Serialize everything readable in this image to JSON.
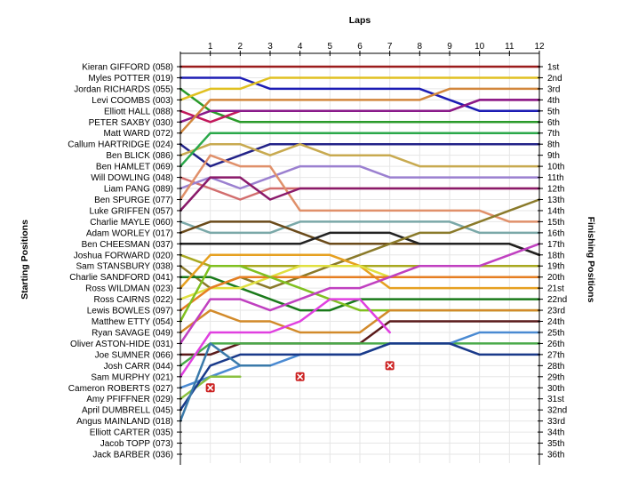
{
  "chart_data": {
    "type": "line",
    "title": "",
    "xlabel": "Laps",
    "ylabel_left": "Starting Positions",
    "ylabel_right": "Finishing Positions",
    "x": [
      0,
      1,
      2,
      3,
      4,
      5,
      6,
      7,
      8,
      9,
      10,
      11,
      12
    ],
    "x_tick_labels": [
      "1",
      "2",
      "3",
      "4",
      "5",
      "6",
      "7",
      "8",
      "9",
      "10",
      "11",
      "12"
    ],
    "ylim": [
      1,
      36
    ],
    "grid": true,
    "legend": "none",
    "finishing_labels": [
      "1st",
      "2nd",
      "3rd",
      "4th",
      "5th",
      "6th",
      "7th",
      "8th",
      "9th",
      "10th",
      "11th",
      "12th",
      "13th",
      "14th",
      "15th",
      "16th",
      "17th",
      "18th",
      "19th",
      "20th",
      "21st",
      "22nd",
      "23rd",
      "24th",
      "25th",
      "26th",
      "27th",
      "28th",
      "29th",
      "30th",
      "31st",
      "32nd",
      "33rd",
      "34th",
      "35th",
      "36th"
    ],
    "series": [
      {
        "label": "Kieran GIFFORD (058)",
        "color": "#9b1c1c",
        "positions": [
          1,
          1,
          1,
          1,
          1,
          1,
          1,
          1,
          1,
          1,
          1,
          1,
          1
        ]
      },
      {
        "label": "Myles POTTER (019)",
        "color": "#1c1cb4",
        "positions": [
          2,
          2,
          2,
          3,
          3,
          3,
          3,
          3,
          3,
          4,
          5,
          5,
          5
        ]
      },
      {
        "label": "Jordan RICHARDS (055)",
        "color": "#2a9a2a",
        "positions": [
          3,
          5,
          6,
          6,
          6,
          6,
          6,
          6,
          6,
          6,
          6,
          6,
          6
        ]
      },
      {
        "label": "Levi COOMBS (003)",
        "color": "#e0c020",
        "positions": [
          4,
          3,
          3,
          2,
          2,
          2,
          2,
          2,
          2,
          2,
          2,
          2,
          2
        ]
      },
      {
        "label": "Elliott HALL (088)",
        "color": "#c2185b",
        "positions": [
          5,
          6,
          5,
          5,
          5,
          5,
          5,
          5,
          5,
          5,
          4,
          4,
          4
        ]
      },
      {
        "label": "PETER SAXBY (030)",
        "color": "#8a1a8a",
        "positions": [
          6,
          5,
          5,
          5,
          5,
          5,
          5,
          5,
          5,
          5,
          4,
          4,
          4
        ]
      },
      {
        "label": "Matt WARD (072)",
        "color": "#d2863c",
        "positions": [
          7,
          4,
          4,
          4,
          4,
          4,
          4,
          4,
          4,
          3,
          3,
          3,
          3
        ]
      },
      {
        "label": "Callum HARTRIDGE (024)",
        "color": "#222288",
        "positions": [
          8,
          10,
          9,
          8,
          8,
          8,
          8,
          8,
          8,
          8,
          8,
          8,
          8
        ]
      },
      {
        "label": "Ben BLICK (086)",
        "color": "#c8aa50",
        "positions": [
          9,
          8,
          8,
          9,
          8,
          9,
          9,
          9,
          10,
          10,
          10,
          10,
          10
        ]
      },
      {
        "label": "Ben HAMLET (069)",
        "color": "#2aa84a",
        "positions": [
          10,
          7,
          7,
          7,
          7,
          7,
          7,
          7,
          7,
          7,
          7,
          7,
          7
        ]
      },
      {
        "label": "Will DOWLING (048)",
        "color": "#d26e6e",
        "positions": [
          11,
          12,
          13,
          12,
          12,
          12,
          12,
          12,
          12,
          12,
          12,
          12,
          12
        ]
      },
      {
        "label": "Liam PANG (089)",
        "color": "#9b80d0",
        "positions": [
          12,
          11,
          12,
          11,
          10,
          10,
          10,
          11,
          11,
          11,
          11,
          11,
          11
        ]
      },
      {
        "label": "Ben SPURGE (077)",
        "color": "#e0906a",
        "positions": [
          13,
          9,
          10,
          10,
          14,
          14,
          14,
          14,
          14,
          14,
          14,
          15,
          15
        ]
      },
      {
        "label": "Luke GRIFFEN (057)",
        "color": "#8a1a6a",
        "positions": [
          14,
          11,
          11,
          13,
          12,
          12,
          12,
          12,
          12,
          12,
          12,
          12,
          12
        ]
      },
      {
        "label": "Charlie MAYLE (060)",
        "color": "#7aa8a8",
        "positions": [
          15,
          16,
          16,
          16,
          15,
          15,
          15,
          15,
          15,
          15,
          16,
          16,
          16
        ]
      },
      {
        "label": "Adam WORLEY (017)",
        "color": "#6a4a1a",
        "positions": [
          16,
          15,
          15,
          15,
          16,
          17,
          17,
          17,
          17,
          17,
          17,
          17,
          18
        ]
      },
      {
        "label": "Ben CHEESMAN (037)",
        "color": "#222222",
        "positions": [
          17,
          17,
          17,
          17,
          17,
          16,
          16,
          16,
          17,
          17,
          17,
          17,
          18
        ]
      },
      {
        "label": "Joshua FORWARD (020)",
        "color": "#a8a820",
        "positions": [
          18,
          19,
          19,
          19,
          19,
          19,
          19,
          19,
          19,
          19,
          19,
          19,
          19
        ]
      },
      {
        "label": "Sam STANSBURY (038)",
        "color": "#8a7a2a",
        "positions": [
          19,
          21,
          20,
          21,
          20,
          19,
          18,
          17,
          16,
          16,
          15,
          14,
          13
        ]
      },
      {
        "label": "Charlie SANDFORD (041)",
        "color": "#1a7a1a",
        "positions": [
          20,
          20,
          21,
          22,
          23,
          23,
          22,
          22,
          22,
          22,
          22,
          22,
          22
        ]
      },
      {
        "label": "Ross WILDMAN (023)",
        "color": "#e6a020",
        "positions": [
          21,
          18,
          18,
          18,
          18,
          18,
          19,
          21,
          21,
          21,
          21,
          21,
          21
        ]
      },
      {
        "label": "Ross CAIRNS (022)",
        "color": "#e0e040",
        "positions": [
          22,
          21,
          21,
          20,
          19,
          19,
          19,
          20,
          20,
          20,
          20,
          20,
          20
        ]
      },
      {
        "label": "Lewis BOWLES (097)",
        "color": "#e67e22",
        "positions": [
          23,
          21,
          20,
          20,
          20,
          20,
          20,
          20,
          20,
          20,
          20,
          20,
          20
        ]
      },
      {
        "label": "Matthew ETTY (054)",
        "color": "#80c020",
        "positions": [
          24,
          19,
          19,
          20,
          21,
          22,
          23,
          23,
          23,
          23,
          23,
          23,
          23
        ]
      },
      {
        "label": "Ryan SAVAGE (049)",
        "color": "#d28a2a",
        "positions": [
          25,
          23,
          24,
          24,
          25,
          25,
          25,
          23,
          23,
          23,
          23,
          23,
          23
        ]
      },
      {
        "label": "Oliver ASTON-HIDE (031)",
        "color": "#c040c0",
        "positions": [
          26,
          22,
          22,
          23,
          22,
          21,
          21,
          20,
          19,
          19,
          19,
          18,
          17
        ]
      },
      {
        "label": "Joe SUMNER (066)",
        "color": "#5a1a1a",
        "positions": [
          27,
          27,
          26,
          26,
          26,
          26,
          26,
          24,
          24,
          24,
          24,
          24,
          24
        ]
      },
      {
        "label": "Josh CARR (044)",
        "color": "#4aaa4a",
        "positions": [
          28,
          26,
          26,
          26,
          26,
          26,
          26,
          26,
          26,
          26,
          26,
          26,
          26
        ]
      },
      {
        "label": "Sam MURPHY (021)",
        "color": "#e040e0",
        "positions": [
          29,
          25,
          25,
          25,
          24,
          22,
          22,
          25,
          null,
          null,
          null,
          null,
          null
        ]
      },
      {
        "label": "Cameron ROBERTS (027)",
        "color": "#4a8ad2",
        "positions": [
          30,
          29,
          28,
          28,
          27,
          27,
          27,
          26,
          26,
          26,
          25,
          25,
          25
        ]
      },
      {
        "label": "Amy PFIFFNER (029)",
        "color": "#8ac040",
        "positions": [
          31,
          29,
          29,
          null,
          null,
          null,
          null,
          null,
          null,
          null,
          null,
          null,
          null
        ]
      },
      {
        "label": "April DUMBRELL (045)",
        "color": "#1a3a8a",
        "positions": [
          32,
          28,
          27,
          27,
          27,
          27,
          27,
          26,
          26,
          26,
          27,
          27,
          27
        ]
      },
      {
        "label": "Angus MAINLAND (018)",
        "color": "#3a7aaa",
        "positions": [
          33,
          26,
          28,
          28,
          null,
          null,
          null,
          null,
          null,
          null,
          null,
          null,
          null
        ]
      },
      {
        "label": "Elliott CARTER (035)",
        "color": "#2a6a8a",
        "positions": [
          34,
          null,
          null,
          null,
          null,
          null,
          null,
          null,
          null,
          null,
          null,
          null,
          null
        ]
      },
      {
        "label": "Jacob TOPP (073)",
        "color": "#555555",
        "positions": [
          35,
          null,
          null,
          null,
          null,
          null,
          null,
          null,
          null,
          null,
          null,
          null,
          null
        ]
      },
      {
        "label": "Jack BARBER (036)",
        "color": "#777777",
        "positions": [
          36,
          null,
          null,
          null,
          null,
          null,
          null,
          null,
          null,
          null,
          null,
          null,
          null
        ]
      }
    ],
    "retirements": [
      {
        "lap": 1,
        "position": 30
      },
      {
        "lap": 4,
        "position": 29
      },
      {
        "lap": 7,
        "position": 28
      }
    ]
  }
}
